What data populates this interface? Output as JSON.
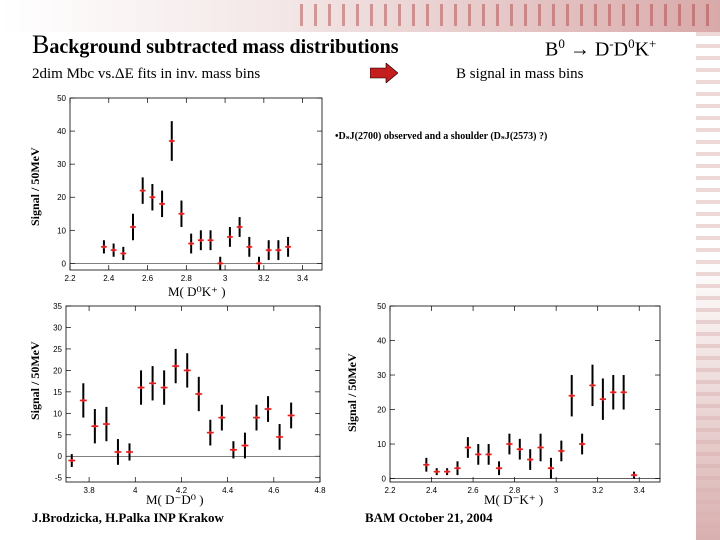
{
  "header": {
    "title_initial": "B",
    "title_rest": "ackground subtracted mass distributions",
    "decay_parts": [
      "B",
      "0",
      " → D",
      "-",
      "D",
      "0",
      "K",
      "+"
    ],
    "subtitle": "2dim Mbc vs.ΔE  fits in inv. mass  bins",
    "arrow_icon": "right-arrow-icon",
    "bsignal": "B signal in mass bins"
  },
  "annotation": "•DₛJ(2700)  observed and a shoulder (DₛJ(2573) ?)",
  "footer": {
    "authors": "J.Brodzicka, H.Palka  INP Krakow",
    "conference": "BAM   October 21, 2004"
  },
  "colors": {
    "marker": "#e02020",
    "bar": "#000000",
    "axis": "#000000"
  },
  "chart_data": [
    {
      "type": "scatter",
      "name": "plot-top",
      "xlabel": "M( D⁰K⁺ )",
      "ylabel": "Signal / 50MeV",
      "xlim": [
        2.2,
        3.5
      ],
      "ylim": [
        -2,
        50
      ],
      "xticks": [
        2.2,
        2.4,
        2.6,
        2.8,
        3.0,
        3.2,
        3.4
      ],
      "xtick_labels": [
        "2.2",
        "2.4",
        "2.6",
        "2.8",
        "3",
        "3.2",
        "3.4"
      ],
      "yticks": [
        0,
        10,
        20,
        30,
        40,
        50
      ],
      "ytick_labels": [
        "0",
        "10",
        "20",
        "30",
        "40",
        "50"
      ],
      "points": [
        {
          "x": 2.375,
          "y": 5,
          "err": 2
        },
        {
          "x": 2.425,
          "y": 4,
          "err": 2
        },
        {
          "x": 2.475,
          "y": 3,
          "err": 2
        },
        {
          "x": 2.525,
          "y": 11,
          "err": 4
        },
        {
          "x": 2.575,
          "y": 22,
          "err": 4
        },
        {
          "x": 2.625,
          "y": 20,
          "err": 4
        },
        {
          "x": 2.675,
          "y": 18,
          "err": 4
        },
        {
          "x": 2.725,
          "y": 37,
          "err": 6
        },
        {
          "x": 2.775,
          "y": 15,
          "err": 4
        },
        {
          "x": 2.825,
          "y": 6,
          "err": 3
        },
        {
          "x": 2.875,
          "y": 7,
          "err": 3
        },
        {
          "x": 2.925,
          "y": 7,
          "err": 3
        },
        {
          "x": 2.975,
          "y": 0,
          "err": 2
        },
        {
          "x": 3.025,
          "y": 8,
          "err": 3
        },
        {
          "x": 3.075,
          "y": 11,
          "err": 3
        },
        {
          "x": 3.125,
          "y": 5,
          "err": 3
        },
        {
          "x": 3.175,
          "y": 0,
          "err": 2
        },
        {
          "x": 3.225,
          "y": 4,
          "err": 3
        },
        {
          "x": 3.275,
          "y": 4,
          "err": 3
        },
        {
          "x": 3.325,
          "y": 5,
          "err": 3
        }
      ]
    },
    {
      "type": "scatter",
      "name": "plot-bottom-left",
      "xlabel": "M( D⁻D⁰ )",
      "ylabel": "Signal / 50MeV",
      "xlim": [
        3.7,
        4.8
      ],
      "ylim": [
        -6,
        35
      ],
      "xticks": [
        3.8,
        4.0,
        4.2,
        4.4,
        4.6,
        4.8
      ],
      "xtick_labels": [
        "3.8",
        "4",
        "4.2",
        "4.4",
        "4.6",
        "4.8"
      ],
      "yticks": [
        -5,
        0,
        5,
        10,
        15,
        20,
        25,
        30,
        35
      ],
      "ytick_labels": [
        "-5",
        "0",
        "5",
        "10",
        "15",
        "20",
        "25",
        "30",
        "35"
      ],
      "points": [
        {
          "x": 3.725,
          "y": -1,
          "err": 1.5
        },
        {
          "x": 3.775,
          "y": 13,
          "err": 4
        },
        {
          "x": 3.825,
          "y": 7,
          "err": 4
        },
        {
          "x": 3.875,
          "y": 7.5,
          "err": 4
        },
        {
          "x": 3.925,
          "y": 1,
          "err": 3
        },
        {
          "x": 3.975,
          "y": 1,
          "err": 2
        },
        {
          "x": 4.025,
          "y": 16,
          "err": 4
        },
        {
          "x": 4.075,
          "y": 17,
          "err": 4
        },
        {
          "x": 4.125,
          "y": 16,
          "err": 4
        },
        {
          "x": 4.175,
          "y": 21,
          "err": 4
        },
        {
          "x": 4.225,
          "y": 20,
          "err": 4
        },
        {
          "x": 4.275,
          "y": 14.5,
          "err": 4
        },
        {
          "x": 4.325,
          "y": 5.5,
          "err": 3
        },
        {
          "x": 4.375,
          "y": 9,
          "err": 3
        },
        {
          "x": 4.425,
          "y": 1.5,
          "err": 2
        },
        {
          "x": 4.475,
          "y": 2.5,
          "err": 3
        },
        {
          "x": 4.525,
          "y": 9,
          "err": 3
        },
        {
          "x": 4.575,
          "y": 11,
          "err": 3
        },
        {
          "x": 4.625,
          "y": 4.5,
          "err": 3
        },
        {
          "x": 4.675,
          "y": 9.5,
          "err": 3
        }
      ]
    },
    {
      "type": "scatter",
      "name": "plot-bottom-right",
      "xlabel": "M( D⁻K⁺ )",
      "ylabel": "Signal / 50MeV",
      "xlim": [
        2.2,
        3.5
      ],
      "ylim": [
        -1,
        50
      ],
      "xticks": [
        2.2,
        2.4,
        2.6,
        2.8,
        3.0,
        3.2,
        3.4
      ],
      "xtick_labels": [
        "2.2",
        "2.4",
        "2.6",
        "2.8",
        "3",
        "3.2",
        "3.4"
      ],
      "yticks": [
        0,
        10,
        20,
        30,
        40,
        50
      ],
      "ytick_labels": [
        "0",
        "10",
        "20",
        "30",
        "40",
        "50"
      ],
      "points": [
        {
          "x": 2.375,
          "y": 4,
          "err": 2
        },
        {
          "x": 2.425,
          "y": 2,
          "err": 1
        },
        {
          "x": 2.475,
          "y": 2,
          "err": 1
        },
        {
          "x": 2.525,
          "y": 3,
          "err": 2
        },
        {
          "x": 2.575,
          "y": 9,
          "err": 3
        },
        {
          "x": 2.625,
          "y": 7,
          "err": 3
        },
        {
          "x": 2.675,
          "y": 7,
          "err": 3
        },
        {
          "x": 2.725,
          "y": 3,
          "err": 2
        },
        {
          "x": 2.775,
          "y": 10,
          "err": 3
        },
        {
          "x": 2.825,
          "y": 8.5,
          "err": 3
        },
        {
          "x": 2.875,
          "y": 5.5,
          "err": 3
        },
        {
          "x": 2.925,
          "y": 9,
          "err": 4
        },
        {
          "x": 2.975,
          "y": 3,
          "err": 3
        },
        {
          "x": 3.025,
          "y": 8,
          "err": 3
        },
        {
          "x": 3.075,
          "y": 24,
          "err": 6
        },
        {
          "x": 3.125,
          "y": 10,
          "err": 3
        },
        {
          "x": 3.175,
          "y": 27,
          "err": 6
        },
        {
          "x": 3.225,
          "y": 23,
          "err": 6
        },
        {
          "x": 3.275,
          "y": 25,
          "err": 5
        },
        {
          "x": 3.325,
          "y": 25,
          "err": 5
        },
        {
          "x": 3.375,
          "y": 1,
          "err": 1
        }
      ]
    }
  ]
}
